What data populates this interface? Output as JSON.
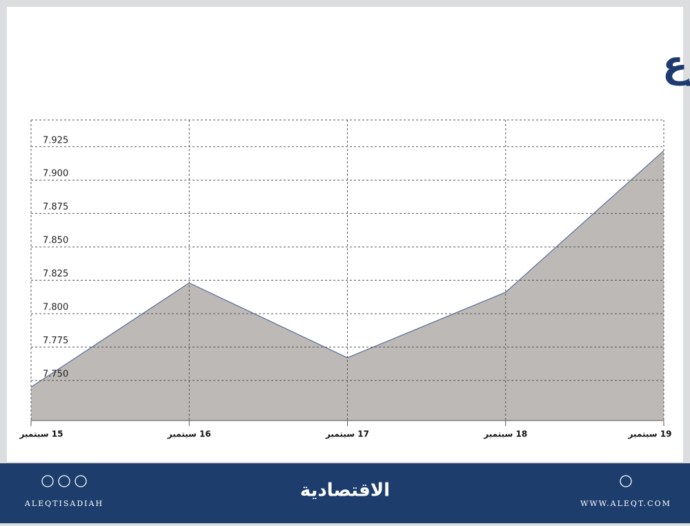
{
  "chart_data": {
    "type": "area",
    "title": "المؤشر في أسبوع",
    "categories": [
      "15 سبتمبر",
      "16 سبتمبر",
      "17 سبتمبر",
      "18 سبتمبر",
      "19 سبتمبر"
    ],
    "values": [
      7.745,
      7.823,
      7.767,
      7.816,
      7.922
    ],
    "color": "#bdb9b7",
    "line_color": "#5b6e96",
    "ylim": [
      7.72,
      7.945
    ],
    "yticks": [
      {
        "value": 7.75,
        "label": "7.750"
      },
      7.775,
      {
        "value": 7.8,
        "label": "7.800"
      },
      7.825,
      {
        "value": 7.85,
        "label": "7.850"
      },
      7.875,
      {
        "value": 7.9,
        "label": "7.900"
      },
      7.925
    ],
    "grid": true
  },
  "footer": {
    "social": "ALEQTISADIAH",
    "logo": "الاقتصادية",
    "website": "WWW.ALEQT.COM"
  }
}
